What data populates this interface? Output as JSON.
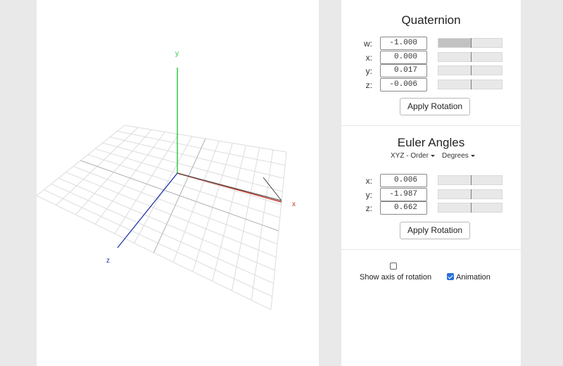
{
  "viewport": {
    "axis_labels": {
      "x": "x",
      "y": "y",
      "z": "z"
    },
    "colors": {
      "x_axis": "#c0392b",
      "y_axis": "#2ecc40",
      "z_axis": "#2233aa",
      "grid": "#dddddd"
    }
  },
  "quaternion": {
    "title": "Quaternion",
    "fields": [
      {
        "label": "w:",
        "value": "-1.000",
        "slider_value": -1.0
      },
      {
        "label": "x:",
        "value": "0.000",
        "slider_value": 0.0
      },
      {
        "label": "y:",
        "value": "0.017",
        "slider_value": 0.017
      },
      {
        "label": "z:",
        "value": "-0.006",
        "slider_value": -0.006
      }
    ],
    "apply_label": "Apply Rotation"
  },
  "euler": {
    "title": "Euler Angles",
    "order_label": "XYZ - Order",
    "unit_label": "Degrees",
    "fields": [
      {
        "label": "x:",
        "value": "0.006",
        "slider_value": 0.006
      },
      {
        "label": "y:",
        "value": "-1.987",
        "slider_value": -1.987
      },
      {
        "label": "z:",
        "value": "0.662",
        "slider_value": 0.662
      }
    ],
    "apply_label": "Apply Rotation"
  },
  "options": {
    "show_axis": {
      "label": "Show axis of rotation",
      "checked": false
    },
    "animation": {
      "label": "Animation",
      "checked": true
    }
  }
}
